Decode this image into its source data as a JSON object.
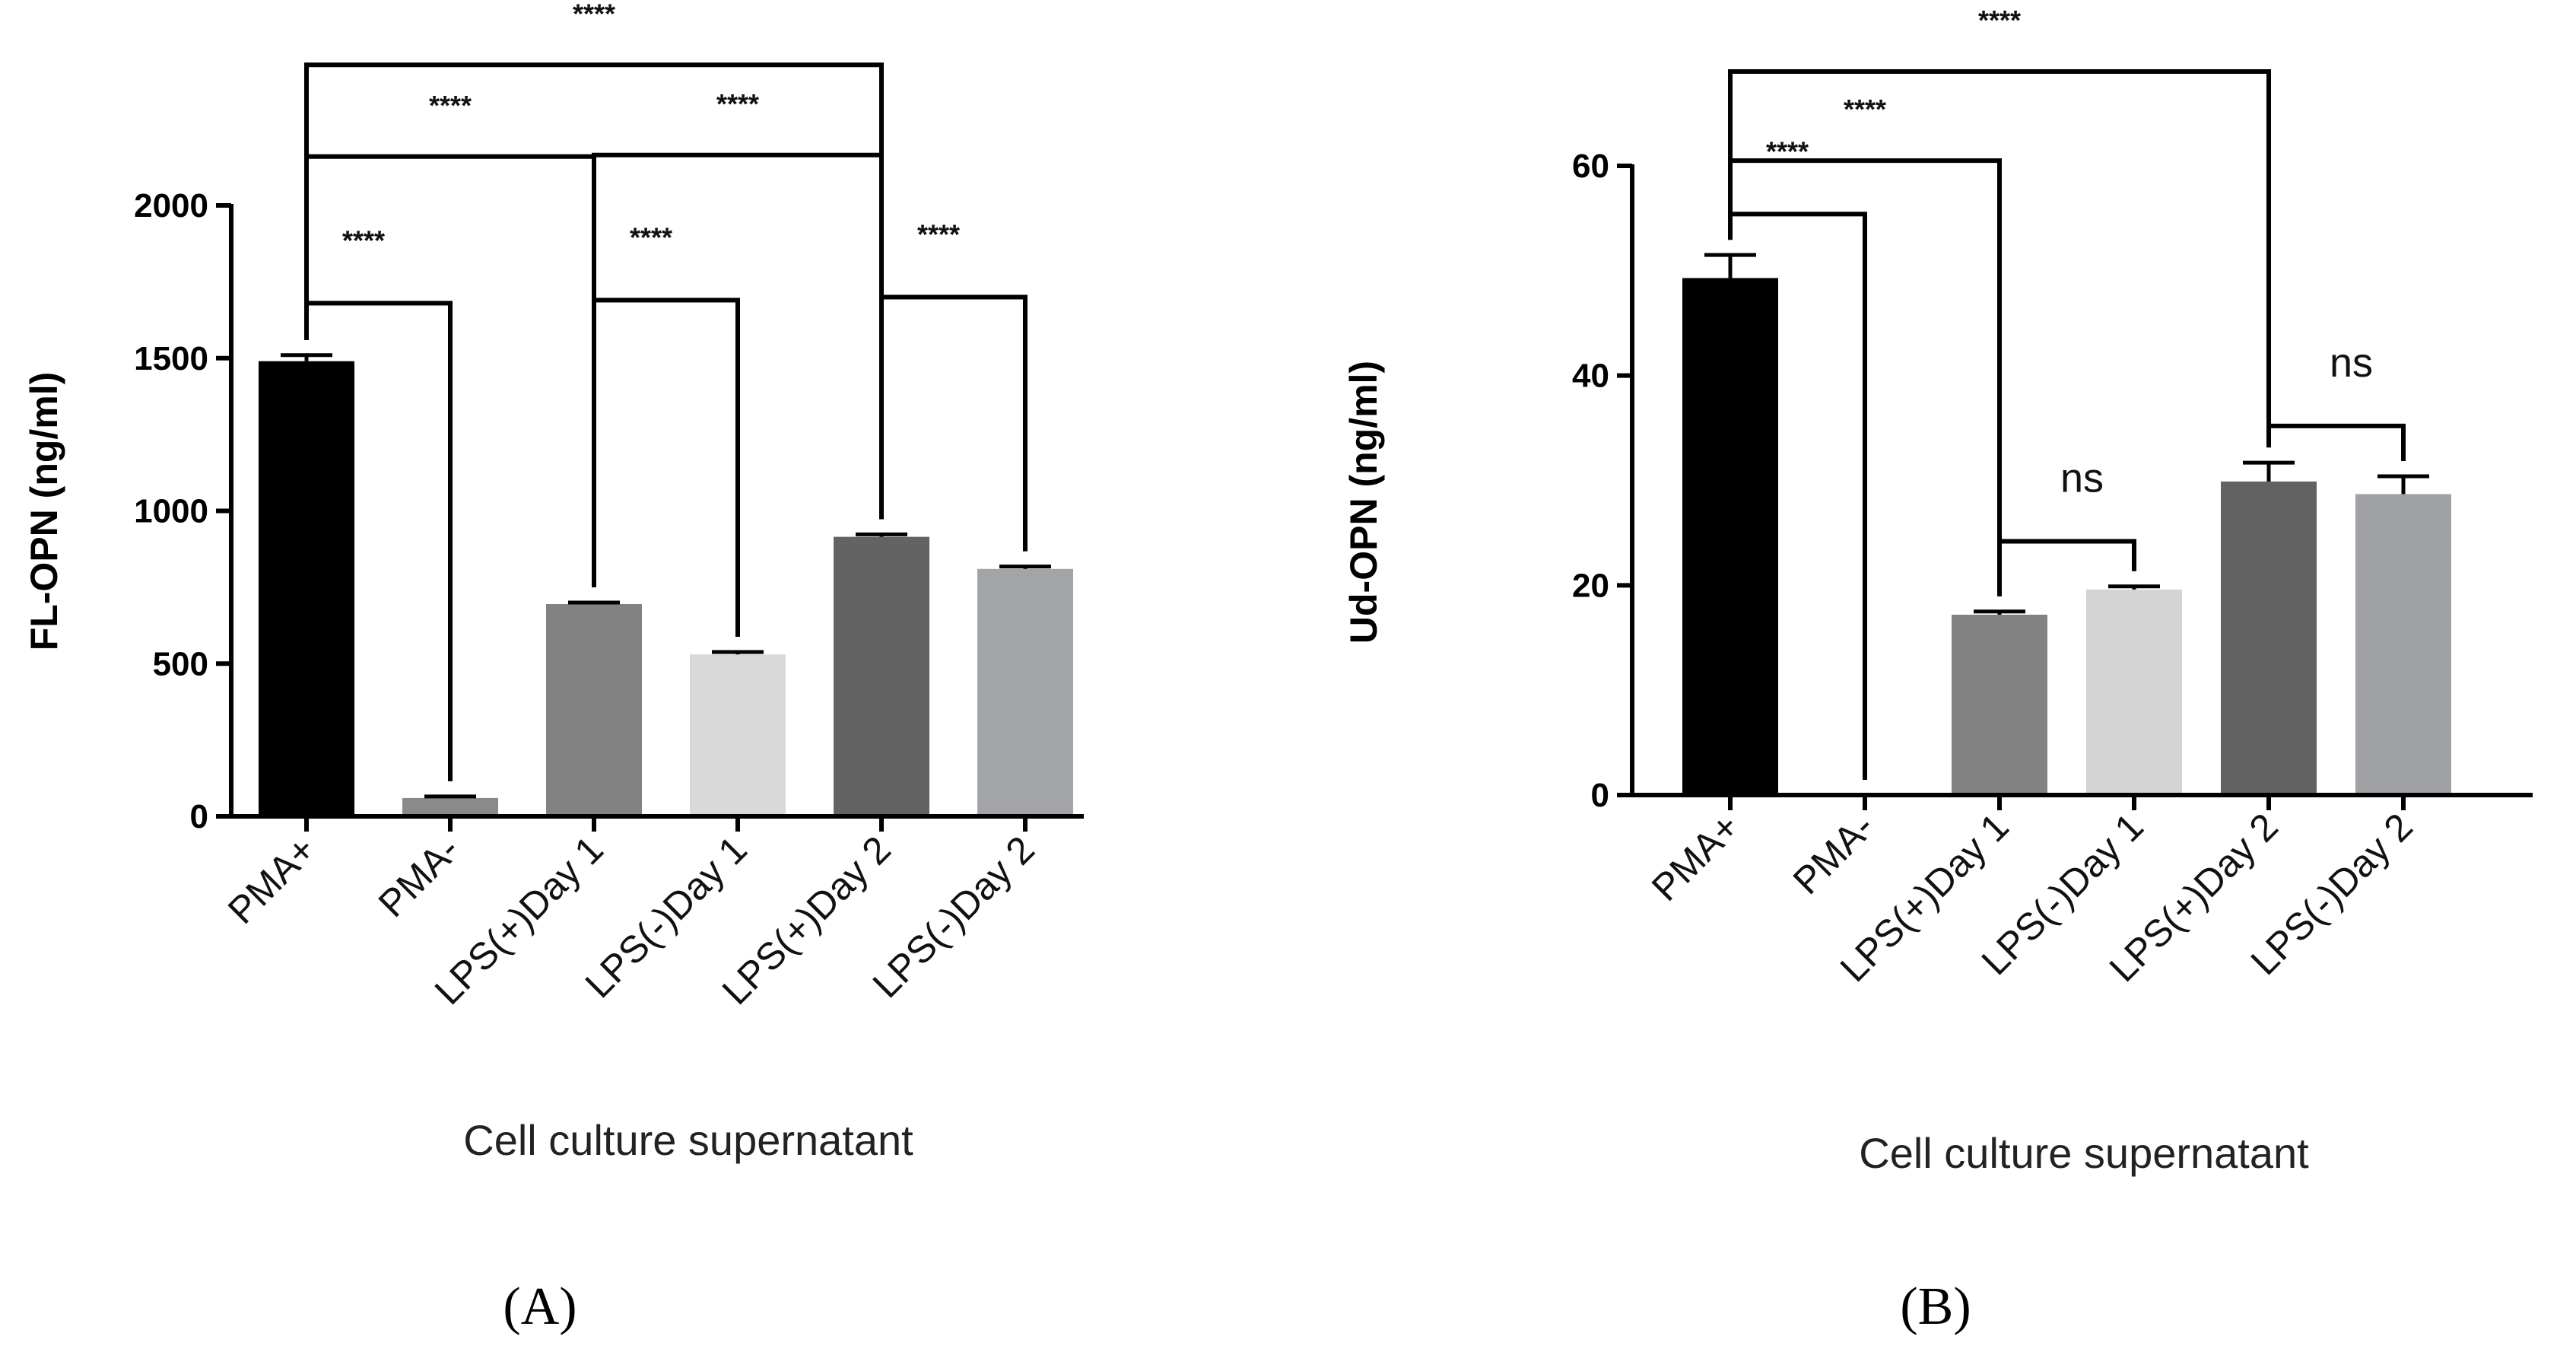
{
  "chart_data": [
    {
      "type": "bar",
      "panel": "A",
      "categories": [
        "PMA+",
        "PMA-",
        "LPS(+)Day 1",
        "LPS(-)Day 1",
        "LPS(+)Day 2",
        "LPS(-)Day 2"
      ],
      "values": [
        1490,
        60,
        695,
        530,
        915,
        810
      ],
      "errors": [
        20,
        5,
        5,
        8,
        8,
        8
      ],
      "colors": [
        "#000000",
        "#8a8a8a",
        "#828282",
        "#d9d9d9",
        "#636363",
        "#a3a4a8"
      ],
      "ylabel": "FL-OPN (ng/ml)",
      "xlabel": "Cell culture supernatant",
      "ylim": [
        0,
        2000
      ],
      "yticks": [
        "0",
        "500",
        "1000",
        "1500",
        "2000"
      ],
      "annotations": [
        {
          "from": 0,
          "to": 1,
          "y": 1680,
          "label": "****"
        },
        {
          "from": 2,
          "to": 3,
          "y": 1690,
          "label": "****"
        },
        {
          "from": 4,
          "to": 5,
          "y": 1700,
          "label": "****"
        },
        {
          "from": 0,
          "to": 2,
          "y": 2160,
          "label": "****"
        },
        {
          "from": 2,
          "to": 4,
          "y": 2165,
          "label": "****"
        },
        {
          "from": 0,
          "to": 4,
          "y": 2460,
          "label": "****"
        }
      ]
    },
    {
      "type": "bar",
      "panel": "B",
      "categories": [
        "PMA+",
        "PMA-",
        "LPS(+)Day 1",
        "LPS(-)Day 1",
        "LPS(+)Day 2",
        "LPS(-)Day 2"
      ],
      "values": [
        49.3,
        0,
        17.2,
        19.6,
        29.9,
        28.7
      ],
      "errors": [
        2.2,
        0,
        0.3,
        0.3,
        1.8,
        1.7
      ],
      "colors": [
        "#000000",
        "#888888",
        "#828282",
        "#d4d4d4",
        "#626262",
        "#a1a2a6"
      ],
      "ylabel": "Ud-OPN  (ng/ml)",
      "xlabel": "Cell culture supernatant",
      "ylim": [
        0,
        60
      ],
      "yticks": [
        "0",
        "20",
        "40",
        "60"
      ],
      "annotations": [
        {
          "from": 2,
          "to": 3,
          "y": 24.2,
          "label": "ns"
        },
        {
          "from": 4,
          "to": 5,
          "y": 35.2,
          "label": "ns"
        },
        {
          "from": 0,
          "to": 1,
          "y": 55.4,
          "label": "****"
        },
        {
          "from": 0,
          "to": 2,
          "y": 60.5,
          "label": "****"
        },
        {
          "from": 0,
          "to": 4,
          "y": 69.0,
          "label": "****"
        }
      ]
    }
  ],
  "panel_labels": [
    "(A)",
    "(B)"
  ]
}
